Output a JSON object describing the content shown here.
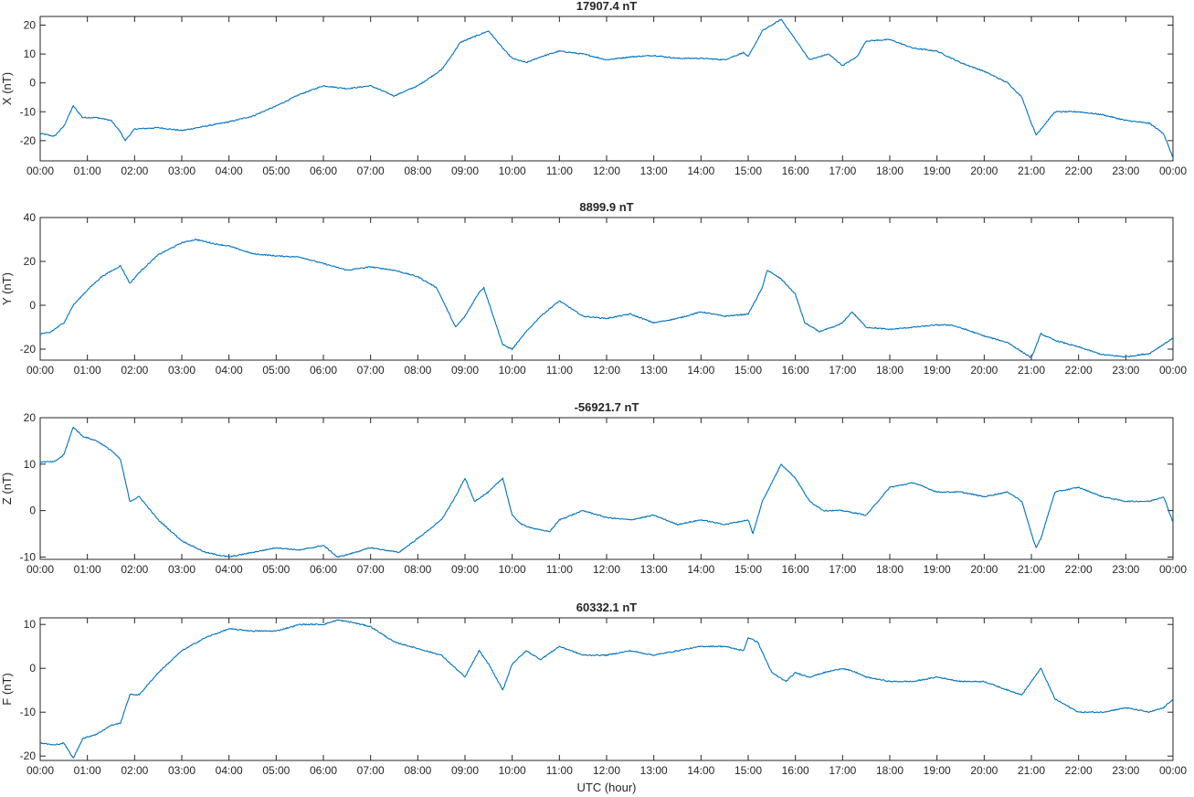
{
  "chart_data": [
    {
      "type": "line",
      "title": "17907.4 nT",
      "ylabel": "X (nT)",
      "xlabel": "",
      "xlim": [
        0,
        24
      ],
      "ylim": [
        -27,
        23
      ],
      "yticks": [
        -20,
        -10,
        0,
        10,
        20
      ],
      "xticks": [
        "00:00",
        "01:00",
        "02:00",
        "03:00",
        "04:00",
        "05:00",
        "06:00",
        "07:00",
        "08:00",
        "09:00",
        "10:00",
        "11:00",
        "12:00",
        "13:00",
        "14:00",
        "15:00",
        "16:00",
        "17:00",
        "18:00",
        "19:00",
        "20:00",
        "21:00",
        "22:00",
        "23:00",
        "00:00"
      ],
      "grid": false,
      "color": "#0072BD",
      "series": [
        {
          "x": [
            0,
            0.3,
            0.5,
            0.7,
            0.9,
            1.2,
            1.5,
            1.7,
            1.8,
            2.0,
            2.5,
            3.0,
            3.5,
            4.0,
            4.5,
            5.0,
            5.5,
            6.0,
            6.5,
            7.0,
            7.5,
            8.0,
            8.5,
            8.7,
            8.9,
            9.2,
            9.5,
            9.8,
            10.0,
            10.3,
            10.6,
            11.0,
            11.5,
            12.0,
            12.5,
            13.0,
            13.5,
            14.0,
            14.5,
            14.9,
            15.0,
            15.3,
            15.7,
            16.0,
            16.3,
            16.7,
            17.0,
            17.3,
            17.5,
            18.0,
            18.5,
            19.0,
            19.5,
            20.0,
            20.5,
            20.8,
            21.0,
            21.1,
            21.5,
            22.0,
            22.5,
            23.0,
            23.5,
            23.8,
            24.0
          ],
          "y": [
            -17.5,
            -18.5,
            -15,
            -8,
            -12,
            -12,
            -13,
            -17,
            -20,
            -16,
            -15.5,
            -16.5,
            -15,
            -13.5,
            -11.5,
            -8,
            -4,
            -1,
            -2,
            -1,
            -4.5,
            -1,
            4.5,
            9,
            14,
            16,
            18,
            12,
            8.5,
            7,
            9,
            11,
            10,
            8,
            9,
            9.5,
            8.5,
            8.5,
            8,
            10.5,
            9,
            18,
            22,
            15,
            8,
            10,
            6,
            9,
            14.5,
            15,
            12,
            11,
            7,
            4,
            0,
            -5,
            -14,
            -18,
            -10,
            -10,
            -11,
            -13,
            -14,
            -17.5,
            -26
          ]
        }
      ]
    },
    {
      "type": "line",
      "title": "8899.9 nT",
      "ylabel": "Y (nT)",
      "xlabel": "",
      "xlim": [
        0,
        24
      ],
      "ylim": [
        -25,
        40
      ],
      "yticks": [
        -20,
        0,
        20,
        40
      ],
      "xticks": [
        "00:00",
        "01:00",
        "02:00",
        "03:00",
        "04:00",
        "05:00",
        "06:00",
        "07:00",
        "08:00",
        "09:00",
        "10:00",
        "11:00",
        "12:00",
        "13:00",
        "14:00",
        "15:00",
        "16:00",
        "17:00",
        "18:00",
        "19:00",
        "20:00",
        "21:00",
        "22:00",
        "23:00",
        "00:00"
      ],
      "grid": false,
      "color": "#0072BD",
      "series": [
        {
          "x": [
            0,
            0.2,
            0.5,
            0.7,
            1.0,
            1.3,
            1.7,
            1.9,
            2.1,
            2.5,
            3.0,
            3.3,
            3.7,
            4.0,
            4.5,
            5.0,
            5.5,
            6.0,
            6.5,
            7.0,
            7.5,
            8.0,
            8.4,
            8.8,
            9.0,
            9.3,
            9.4,
            9.6,
            9.8,
            10.0,
            10.3,
            10.6,
            11.0,
            11.5,
            12.0,
            12.5,
            13.0,
            13.5,
            14.0,
            14.5,
            15.0,
            15.3,
            15.4,
            15.7,
            16.0,
            16.2,
            16.5,
            16.8,
            17.0,
            17.2,
            17.5,
            18.0,
            18.5,
            19.0,
            19.3,
            19.6,
            20.0,
            20.5,
            21.0,
            21.2,
            21.5,
            22.0,
            22.5,
            23.0,
            23.5,
            24.0
          ],
          "y": [
            -13,
            -12.5,
            -8,
            0,
            7,
            13,
            18,
            10,
            15,
            23,
            28.5,
            30,
            28,
            27,
            23.5,
            22.5,
            22,
            19,
            16,
            17.5,
            16,
            13,
            8,
            -10,
            -5,
            6,
            8,
            -5,
            -18,
            -20,
            -12,
            -5,
            2,
            -5,
            -6,
            -4,
            -8,
            -6,
            -3,
            -5,
            -4,
            8,
            16,
            12,
            5,
            -8,
            -12,
            -10,
            -8,
            -3,
            -10,
            -11,
            -10,
            -9,
            -9,
            -11,
            -14,
            -17,
            -24,
            -13,
            -16,
            -19,
            -22.5,
            -23.5,
            -22,
            -15
          ]
        }
      ]
    },
    {
      "type": "line",
      "title": "-56921.7 nT",
      "ylabel": "Z (nT)",
      "xlabel": "",
      "xlim": [
        0,
        24
      ],
      "ylim": [
        -10.5,
        20
      ],
      "yticks": [
        -10,
        0,
        10,
        20
      ],
      "xticks": [
        "00:00",
        "01:00",
        "02:00",
        "03:00",
        "04:00",
        "05:00",
        "06:00",
        "07:00",
        "08:00",
        "09:00",
        "10:00",
        "11:00",
        "12:00",
        "13:00",
        "14:00",
        "15:00",
        "16:00",
        "17:00",
        "18:00",
        "19:00",
        "20:00",
        "21:00",
        "22:00",
        "23:00",
        "00:00"
      ],
      "grid": false,
      "color": "#0072BD",
      "series": [
        {
          "x": [
            0,
            0.3,
            0.5,
            0.7,
            0.9,
            1.2,
            1.5,
            1.7,
            1.9,
            2.1,
            2.5,
            3.0,
            3.5,
            4.0,
            4.5,
            5.0,
            5.5,
            6.0,
            6.3,
            6.5,
            7.0,
            7.3,
            7.6,
            8.0,
            8.5,
            8.8,
            9.0,
            9.2,
            9.5,
            9.8,
            10.0,
            10.2,
            10.5,
            10.8,
            11.0,
            11.5,
            12.0,
            12.5,
            13.0,
            13.5,
            14.0,
            14.5,
            15.0,
            15.1,
            15.3,
            15.7,
            16.0,
            16.3,
            16.6,
            17.0,
            17.5,
            18.0,
            18.5,
            19.0,
            19.5,
            20.0,
            20.5,
            20.8,
            21.0,
            21.1,
            21.2,
            21.5,
            22.0,
            22.5,
            23.0,
            23.5,
            23.8,
            24.0
          ],
          "y": [
            10.5,
            10.5,
            12,
            18,
            16,
            15,
            13,
            11,
            2,
            3,
            -2,
            -6.5,
            -9,
            -10,
            -9,
            -8,
            -8.5,
            -7.5,
            -10,
            -9.5,
            -8,
            -8.5,
            -9,
            -6,
            -2,
            3,
            7,
            2,
            4,
            7,
            -1,
            -3,
            -4,
            -4.5,
            -2,
            0,
            -1.5,
            -2,
            -1,
            -3,
            -2,
            -3,
            -2,
            -5,
            2,
            10,
            7,
            2,
            0,
            0,
            -1,
            5,
            6,
            4,
            4,
            3,
            4,
            2,
            -5,
            -8,
            -6,
            4,
            5,
            3,
            2,
            2,
            3,
            -2.5
          ]
        }
      ]
    },
    {
      "type": "line",
      "title": "60332.1 nT",
      "ylabel": "F (nT)",
      "xlabel": "UTC (hour)",
      "xlim": [
        0,
        24
      ],
      "ylim": [
        -21,
        11.5
      ],
      "yticks": [
        -20,
        -10,
        0,
        10
      ],
      "xticks": [
        "00:00",
        "01:00",
        "02:00",
        "03:00",
        "04:00",
        "05:00",
        "06:00",
        "07:00",
        "08:00",
        "09:00",
        "10:00",
        "11:00",
        "12:00",
        "13:00",
        "14:00",
        "15:00",
        "16:00",
        "17:00",
        "18:00",
        "19:00",
        "20:00",
        "21:00",
        "22:00",
        "23:00",
        "00:00"
      ],
      "grid": false,
      "color": "#0072BD",
      "series": [
        {
          "x": [
            0,
            0.3,
            0.5,
            0.7,
            0.9,
            1.2,
            1.5,
            1.7,
            1.9,
            2.1,
            2.5,
            3.0,
            3.5,
            4.0,
            4.5,
            5.0,
            5.5,
            6.0,
            6.3,
            6.6,
            7.0,
            7.5,
            8.0,
            8.5,
            8.9,
            9.0,
            9.3,
            9.5,
            9.7,
            9.8,
            10.0,
            10.3,
            10.6,
            11.0,
            11.5,
            12.0,
            12.5,
            13.0,
            13.5,
            14.0,
            14.5,
            14.9,
            15.0,
            15.2,
            15.5,
            15.8,
            16.0,
            16.3,
            16.6,
            17.0,
            17.3,
            17.5,
            18.0,
            18.5,
            19.0,
            19.5,
            20.0,
            20.5,
            20.8,
            21.0,
            21.2,
            21.5,
            22.0,
            22.5,
            23.0,
            23.5,
            23.8,
            24.0
          ],
          "y": [
            -17,
            -17.5,
            -17,
            -20.5,
            -16,
            -15,
            -13,
            -12.5,
            -6,
            -6,
            -1,
            4,
            7,
            9,
            8.5,
            8.5,
            10,
            10,
            11,
            10.5,
            9.5,
            6,
            4.5,
            3,
            -1,
            -2,
            4,
            1,
            -3,
            -5,
            1,
            4,
            2,
            5,
            3,
            3,
            4,
            3,
            4,
            5,
            5,
            4,
            7,
            6,
            -1,
            -3,
            -1,
            -2,
            -1,
            0,
            -1,
            -2,
            -3,
            -3,
            -2,
            -3,
            -3,
            -5,
            -6,
            -3,
            0,
            -7,
            -10,
            -10,
            -9,
            -10,
            -9,
            -7
          ]
        }
      ]
    }
  ]
}
